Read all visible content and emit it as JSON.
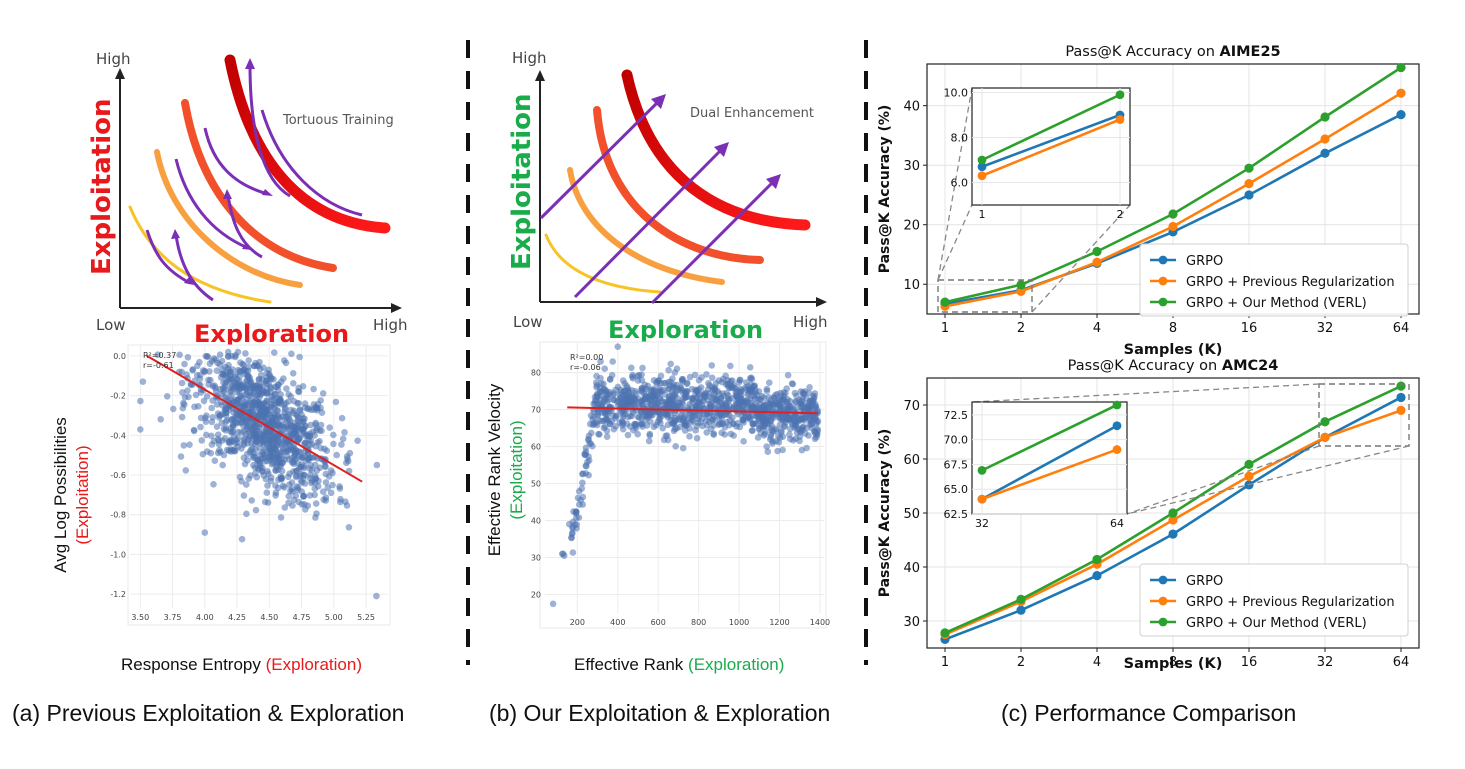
{
  "colors": {
    "grpo": "#1f77b4",
    "prev": "#ff7f0e",
    "ours": "#2ca02c",
    "exploit_red": "#e8191b",
    "explore_green": "#1aab4b",
    "purple": "#7b2fb5",
    "scatter": "#4c72b0",
    "fit": "#e0201e"
  },
  "panel_a": {
    "concept": {
      "y_axis": "Exploitation",
      "x_axis": "Exploration",
      "y_high": "High",
      "x_low": "Low",
      "x_high": "High",
      "annotation": "Tortuous Training"
    },
    "scatter": {
      "ylabel_main": "Avg Log Possibilities",
      "ylabel_sub": "(Exploitation)",
      "xlabel_main": "Response Entropy",
      "xlabel_sub": "(Exploration)",
      "stats_r2": "R²=0.37",
      "stats_r": "r=-0.61",
      "x_ticks": [
        "3.50",
        "3.75",
        "4.00",
        "4.25",
        "4.50",
        "4.75",
        "5.00",
        "5.25"
      ],
      "y_ticks": [
        "0.0",
        "-0.2",
        "-0.4",
        "-0.6",
        "-0.8",
        "-1.0",
        "-1.2"
      ]
    },
    "caption": "(a) Previous Exploitation & Exploration"
  },
  "panel_b": {
    "concept": {
      "y_axis": "Exploitation",
      "x_axis": "Exploration",
      "y_high": "High",
      "x_low": "Low",
      "x_high": "High",
      "annotation": "Dual Enhancement"
    },
    "scatter": {
      "ylabel_main": "Effective Rank Velocity",
      "ylabel_sub": "(Exploitation)",
      "xlabel_main": "Effective Rank",
      "xlabel_sub": "(Exploration)",
      "stats_r2": "R²=0.00",
      "stats_r": "r=-0.06",
      "x_ticks": [
        "200",
        "400",
        "600",
        "800",
        "1000",
        "1200",
        "1400"
      ],
      "y_ticks": [
        "80",
        "70",
        "60",
        "50",
        "40",
        "30",
        "20"
      ]
    },
    "caption": "(b) Our Exploitation & Exploration"
  },
  "panel_c": {
    "caption": "(c) Performance Comparison"
  },
  "chart_data": [
    {
      "type": "scatter",
      "title": "",
      "xlabel": "Response Entropy (Exploration)",
      "ylabel": "Avg Log Possibilities (Exploitation)",
      "xlim": [
        3.42,
        5.42
      ],
      "ylim": [
        -1.27,
        0.05
      ],
      "trend": {
        "slope": -0.38,
        "intercept": 1.35
      },
      "points_approx": "≈1500 points, dense cloud from (3.6,-0.1) to (5.3,-1.2)"
    },
    {
      "type": "scatter",
      "title": "",
      "xlabel": "Effective Rank (Exploration)",
      "ylabel": "Effective Rank Velocity (Exploitation)",
      "xlim": [
        40,
        1420
      ],
      "ylim": [
        15,
        88
      ],
      "trend": {
        "slope": -0.0013,
        "intercept": 70.8
      },
      "points_approx": "≈1500 points, rising to ~72 by rank 300 then flat"
    },
    {
      "type": "line",
      "title": "Pass@K Accuracy on AIME25",
      "title_prefix": "Pass@K Accuracy on ",
      "title_bold": "AIME25",
      "xlabel": "Samples (K)",
      "ylabel": "Pass@K Accuracy (%)",
      "categories": [
        "1",
        "2",
        "4",
        "8",
        "16",
        "32",
        "64"
      ],
      "ylim": [
        5,
        47
      ],
      "y_ticks": [
        10,
        20,
        30,
        40
      ],
      "series": [
        {
          "name": "GRPO",
          "values": [
            6.7,
            9.0,
            13.5,
            18.8,
            25.0,
            32.0,
            38.5
          ]
        },
        {
          "name": "GRPO + Previous Regularization",
          "values": [
            6.3,
            8.8,
            13.7,
            19.7,
            26.9,
            34.4,
            42.1
          ]
        },
        {
          "name": "GRPO + Our Method (VERL)",
          "values": [
            7.0,
            9.9,
            15.5,
            21.8,
            29.5,
            38.1,
            46.4
          ]
        }
      ],
      "inset": {
        "categories": [
          "1",
          "2"
        ],
        "ylim": [
          5.0,
          10.2
        ],
        "y_ticks": [
          "10.0",
          "8.0",
          "6.0"
        ],
        "series": [
          {
            "name": "GRPO",
            "values": [
              6.7,
              9.0
            ]
          },
          {
            "name": "GRPO + Previous Regularization",
            "values": [
              6.3,
              8.8
            ]
          },
          {
            "name": "GRPO + Our Method (VERL)",
            "values": [
              7.0,
              9.9
            ]
          }
        ]
      }
    },
    {
      "type": "line",
      "title": "Pass@K Accuracy on AMC24",
      "title_prefix": "Pass@K Accuracy on ",
      "title_bold": "AMC24",
      "xlabel": "Samples (K)",
      "ylabel": "Pass@K Accuracy (%)",
      "categories": [
        "1",
        "2",
        "4",
        "8",
        "16",
        "32",
        "64"
      ],
      "ylim": [
        25,
        75
      ],
      "y_ticks": [
        30,
        40,
        50,
        60,
        70
      ],
      "series": [
        {
          "name": "GRPO",
          "values": [
            26.6,
            32.0,
            38.4,
            46.1,
            55.2,
            64.0,
            71.4
          ]
        },
        {
          "name": "GRPO + Previous Regularization",
          "values": [
            27.5,
            33.6,
            40.5,
            48.7,
            56.8,
            64.0,
            69.0
          ]
        },
        {
          "name": "GRPO + Our Method (VERL)",
          "values": [
            27.8,
            34.0,
            41.4,
            50.0,
            59.0,
            66.9,
            73.5
          ]
        }
      ],
      "inset": {
        "categories": [
          "32",
          "64"
        ],
        "ylim": [
          62.5,
          73.8
        ],
        "y_ticks": [
          "72.5",
          "70.0",
          "67.5",
          "65.0",
          "62.5"
        ],
        "series": [
          {
            "name": "GRPO",
            "values": [
              64.0,
              71.4
            ]
          },
          {
            "name": "GRPO + Previous Regularization",
            "values": [
              64.0,
              69.0
            ]
          },
          {
            "name": "GRPO + Our Method (VERL)",
            "values": [
              66.9,
              73.5
            ]
          }
        ]
      }
    }
  ]
}
